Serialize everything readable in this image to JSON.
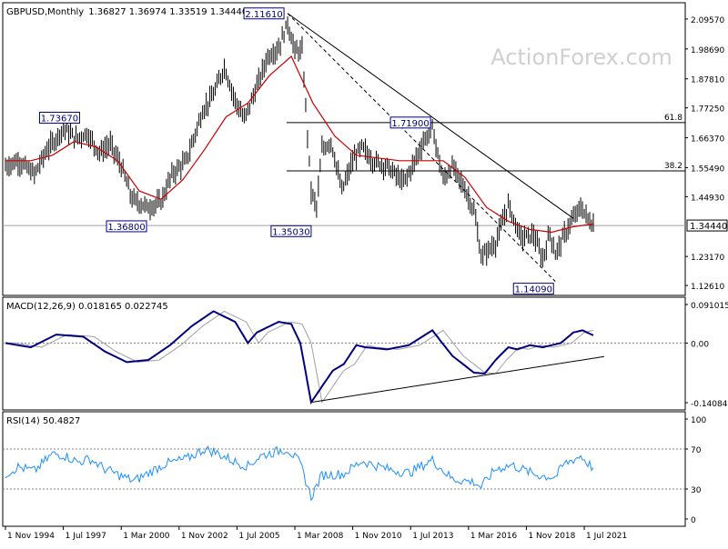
{
  "symbol_label": "GBPUSD,Monthly",
  "ohlc_label": "1.36827 1.36974 1.33519 1.34440",
  "watermark": "ActionForex.com",
  "colors": {
    "price_bars": "#000000",
    "moving_average": "#cc0000",
    "macd_line": "#000080",
    "macd_signal": "#a0a0a0",
    "rsi_line": "#1e90ff",
    "trendline": "#000000",
    "fib_lines": "#000000",
    "current_price_line": "#a0a0a0",
    "watermark": "#d0d0d0",
    "border": "#000000"
  },
  "chart_data": [
    {
      "type": "line",
      "panel": "price",
      "title": "GBPUSD,Monthly",
      "ylim": [
        1.1,
        2.2
      ],
      "y_ticks": [
        "2.09570",
        "1.98690",
        "1.87810",
        "1.77250",
        "1.66370",
        "1.55490",
        "1.44930",
        "1.34440",
        "1.23170",
        "1.12610"
      ],
      "x_ticks": [
        "1 Nov 1994",
        "1 Jul 1997",
        "1 Mar 2000",
        "1 Nov 2002",
        "1 Jul 2005",
        "1 Mar 2008",
        "1 Nov 2010",
        "1 Jul 2013",
        "1 Mar 2016",
        "1 Nov 2018",
        "1 Jul 2021"
      ],
      "x_range": [
        "1994-11",
        "2021-12"
      ],
      "series": [
        {
          "name": "",
          "points": [
            [
              "1994-11",
              1.56
            ],
            [
              "1995-06",
              1.58
            ],
            [
              "1996-03",
              1.53
            ],
            [
              "1996-10",
              1.62
            ],
            [
              "1997-03",
              1.66
            ],
            [
              "1997-07",
              1.7
            ],
            [
              "1998-02",
              1.66
            ],
            [
              "1998-08",
              1.68
            ],
            [
              "1999-03",
              1.61
            ],
            [
              "1999-09",
              1.64
            ],
            [
              "2000-03",
              1.56
            ],
            [
              "2000-09",
              1.44
            ],
            [
              "2001-06",
              1.41
            ],
            [
              "2002-01",
              1.43
            ],
            [
              "2002-07",
              1.53
            ],
            [
              "2003-03",
              1.58
            ],
            [
              "2003-12",
              1.76
            ],
            [
              "2004-06",
              1.82
            ],
            [
              "2004-12",
              1.92
            ],
            [
              "2005-06",
              1.8
            ],
            [
              "2005-11",
              1.73
            ],
            [
              "2006-06",
              1.85
            ],
            [
              "2006-12",
              1.96
            ],
            [
              "2007-06",
              1.99
            ],
            [
              "2007-11",
              2.08
            ],
            [
              "2008-03",
              1.98
            ],
            [
              "2008-07",
              1.98
            ],
            [
              "2008-12",
              1.47
            ],
            [
              "2009-03",
              1.41
            ],
            [
              "2009-06",
              1.62
            ],
            [
              "2009-11",
              1.65
            ],
            [
              "2010-05",
              1.47
            ],
            [
              "2010-11",
              1.58
            ],
            [
              "2011-04",
              1.63
            ],
            [
              "2011-10",
              1.58
            ],
            [
              "2012-06",
              1.56
            ],
            [
              "2013-03",
              1.5
            ],
            [
              "2013-08",
              1.56
            ],
            [
              "2014-02",
              1.65
            ],
            [
              "2014-07",
              1.7
            ],
            [
              "2015-01",
              1.51
            ],
            [
              "2015-06",
              1.56
            ],
            [
              "2015-12",
              1.49
            ],
            [
              "2016-06",
              1.4
            ],
            [
              "2016-10",
              1.23
            ],
            [
              "2017-06",
              1.28
            ],
            [
              "2018-01",
              1.42
            ],
            [
              "2018-08",
              1.3
            ],
            [
              "2019-03",
              1.31
            ],
            [
              "2019-08",
              1.22
            ],
            [
              "2019-12",
              1.32
            ],
            [
              "2020-03",
              1.24
            ],
            [
              "2020-08",
              1.31
            ],
            [
              "2020-12",
              1.36
            ],
            [
              "2021-05",
              1.41
            ],
            [
              "2021-09",
              1.37
            ],
            [
              "2021-12",
              1.3444
            ]
          ]
        },
        {
          "name": "",
          "points": [
            [
              "1994-11",
              1.58
            ],
            [
              "1996-01",
              1.58
            ],
            [
              "1997-01",
              1.6
            ],
            [
              "1998-01",
              1.65
            ],
            [
              "1999-01",
              1.63
            ],
            [
              "2000-01",
              1.58
            ],
            [
              "2001-01",
              1.47
            ],
            [
              "2002-01",
              1.44
            ],
            [
              "2003-01",
              1.51
            ],
            [
              "2004-01",
              1.62
            ],
            [
              "2005-01",
              1.74
            ],
            [
              "2006-01",
              1.79
            ],
            [
              "2007-01",
              1.89
            ],
            [
              "2008-01",
              1.96
            ],
            [
              "2009-01",
              1.79
            ],
            [
              "2010-01",
              1.67
            ],
            [
              "2011-01",
              1.6
            ],
            [
              "2012-01",
              1.59
            ],
            [
              "2013-01",
              1.58
            ],
            [
              "2014-01",
              1.58
            ],
            [
              "2015-01",
              1.58
            ],
            [
              "2016-01",
              1.52
            ],
            [
              "2017-01",
              1.41
            ],
            [
              "2018-01",
              1.36
            ],
            [
              "2019-01",
              1.33
            ],
            [
              "2020-01",
              1.32
            ],
            [
              "2021-01",
              1.34
            ],
            [
              "2021-12",
              1.35
            ]
          ]
        }
      ],
      "annotations": [
        {
          "label": "2.11610",
          "date": "2007-11",
          "value": 2.1161
        },
        {
          "label": "1.73670",
          "date": "1998-08",
          "value": 1.7367
        },
        {
          "label": "1.36800",
          "date": "2001-06",
          "value": 1.368
        },
        {
          "label": "1.35030",
          "date": "2009-01",
          "value": 1.3503
        },
        {
          "label": "1.71900",
          "date": "2014-07",
          "value": 1.719
        },
        {
          "label": "1.14090",
          "date": "2020-03",
          "value": 1.1409
        }
      ],
      "current_price": "1.34440",
      "fib_levels": [
        {
          "label": "61.8",
          "value": 1.719
        },
        {
          "label": "38.2",
          "value": 1.543
        }
      ],
      "trendlines": [
        {
          "style": "solid",
          "from": [
            "2007-11",
            2.1161
          ],
          "to": [
            "2021-01",
            1.37
          ]
        },
        {
          "style": "dashed",
          "from": [
            "2007-11",
            2.1161
          ],
          "to": [
            "2020-03",
            1.1409
          ]
        }
      ]
    },
    {
      "type": "line",
      "panel": "macd",
      "title": "MACD(12,26,9) 0.018165 0.022745",
      "ylim": [
        -0.140843,
        0.091015
      ],
      "y_ticks": [
        "0.091015",
        "0.00",
        "-0.140843"
      ],
      "series": [
        {
          "name": "",
          "points": [
            [
              "1994-11",
              0.0
            ],
            [
              "1996-01",
              -0.01
            ],
            [
              "1997-03",
              0.02
            ],
            [
              "1998-06",
              0.015
            ],
            [
              "1999-06",
              -0.02
            ],
            [
              "2000-06",
              -0.045
            ],
            [
              "2001-06",
              -0.04
            ],
            [
              "2002-06",
              -0.005
            ],
            [
              "2003-06",
              0.04
            ],
            [
              "2004-06",
              0.075
            ],
            [
              "2005-06",
              0.05
            ],
            [
              "2006-01",
              0.0
            ],
            [
              "2006-06",
              0.025
            ],
            [
              "2007-06",
              0.05
            ],
            [
              "2008-01",
              0.045
            ],
            [
              "2008-06",
              0.0
            ],
            [
              "2008-12",
              -0.14
            ],
            [
              "2009-12",
              -0.065
            ],
            [
              "2010-06",
              -0.05
            ],
            [
              "2011-01",
              -0.005
            ],
            [
              "2011-06",
              -0.01
            ],
            [
              "2012-06",
              -0.015
            ],
            [
              "2013-06",
              -0.005
            ],
            [
              "2014-07",
              0.03
            ],
            [
              "2015-06",
              -0.03
            ],
            [
              "2016-06",
              -0.07
            ],
            [
              "2016-12",
              -0.072
            ],
            [
              "2017-06",
              -0.04
            ],
            [
              "2018-01",
              -0.01
            ],
            [
              "2018-06",
              -0.015
            ],
            [
              "2019-01",
              -0.005
            ],
            [
              "2019-08",
              -0.01
            ],
            [
              "2020-06",
              0.0
            ],
            [
              "2021-01",
              0.025
            ],
            [
              "2021-06",
              0.03
            ],
            [
              "2021-12",
              0.018165
            ]
          ]
        }
      ]
    },
    {
      "type": "line",
      "panel": "rsi",
      "title": "RSI(14) 50.4827",
      "ylim": [
        0,
        100
      ],
      "y_ticks": [
        "100",
        "70",
        "30",
        "0"
      ],
      "series": [
        {
          "name": "",
          "points": [
            [
              "1994-11",
              45
            ],
            [
              "1995-06",
              52
            ],
            [
              "1996-03",
              48
            ],
            [
              "1997-01",
              65
            ],
            [
              "1997-07",
              64
            ],
            [
              "1998-03",
              57
            ],
            [
              "1998-10",
              60
            ],
            [
              "1999-06",
              50
            ],
            [
              "2000-03",
              43
            ],
            [
              "2000-10",
              38
            ],
            [
              "2001-06",
              46
            ],
            [
              "2002-03",
              55
            ],
            [
              "2003-03",
              60
            ],
            [
              "2004-01",
              70
            ],
            [
              "2004-08",
              66
            ],
            [
              "2005-06",
              57
            ],
            [
              "2006-01",
              53
            ],
            [
              "2006-08",
              63
            ],
            [
              "2007-06",
              68
            ],
            [
              "2007-11",
              70
            ],
            [
              "2008-06",
              55
            ],
            [
              "2008-12",
              22
            ],
            [
              "2009-06",
              44
            ],
            [
              "2010-06",
              45
            ],
            [
              "2011-04",
              58
            ],
            [
              "2012-06",
              50
            ],
            [
              "2013-06",
              46
            ],
            [
              "2014-07",
              59
            ],
            [
              "2015-06",
              40
            ],
            [
              "2016-06",
              37
            ],
            [
              "2016-10",
              32
            ],
            [
              "2017-06",
              50
            ],
            [
              "2018-03",
              54
            ],
            [
              "2019-03",
              45
            ],
            [
              "2019-08",
              43
            ],
            [
              "2020-03",
              42
            ],
            [
              "2020-08",
              55
            ],
            [
              "2021-05",
              63
            ],
            [
              "2021-12",
              50.4827
            ]
          ]
        }
      ],
      "trendlines": []
    }
  ],
  "macd_support_line": {
    "from": [
      "2008-12",
      -0.14
    ],
    "to": [
      "2022-06",
      -0.032
    ]
  }
}
